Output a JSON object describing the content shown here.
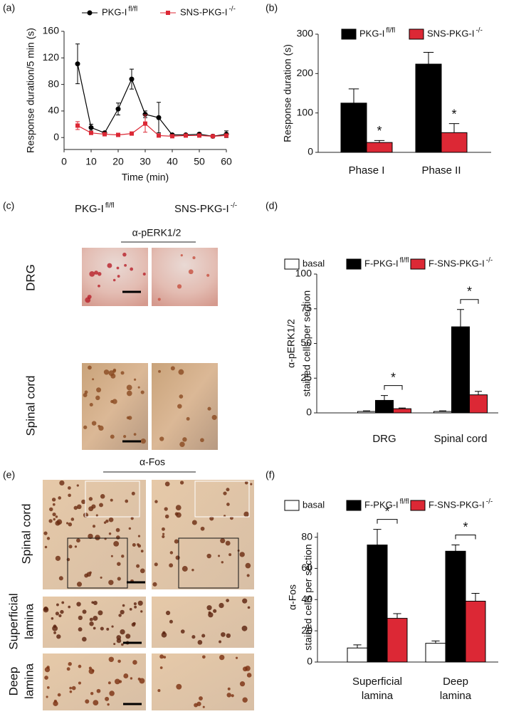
{
  "figure": {
    "panel_c": {
      "label": "(c)",
      "columns": [
        {
          "text": "PKG-I",
          "sup": "fl/fl"
        },
        {
          "text": "SNS-PKG-I",
          "sup": "-/-"
        }
      ],
      "stain": "α-pERK1/2",
      "rows": [
        "DRG",
        "Spinal cord"
      ]
    },
    "panel_e": {
      "label": "(e)",
      "stain": "α-Fos",
      "rows": [
        [
          "Spinal cord"
        ],
        [
          "Superficial",
          "lamina"
        ],
        [
          "Deep",
          "lamina"
        ]
      ]
    }
  },
  "chart_data": [
    {
      "type": "line",
      "panel_label": "(a)",
      "x_label": "Time (min)",
      "y_label": "Response duration/5 min (s)",
      "x": [
        5,
        10,
        15,
        20,
        25,
        30,
        35,
        40,
        45,
        50,
        55,
        60
      ],
      "xlim": [
        0,
        60
      ],
      "xticks": [
        0,
        10,
        20,
        30,
        40,
        50,
        60
      ],
      "ylim": [
        -18,
        160
      ],
      "yticks": [
        0,
        40,
        80,
        120,
        160
      ],
      "series": [
        {
          "name": "PKG-I",
          "name_sup": "fl/fl",
          "color": "#000000",
          "marker": "circle",
          "values": [
            111,
            15,
            7,
            43,
            88,
            35,
            30,
            4,
            4,
            5,
            2,
            5
          ],
          "errors": [
            30,
            5,
            2,
            9,
            15,
            5,
            23,
            2,
            2,
            2,
            1,
            5
          ]
        },
        {
          "name": "SNS-PKG-I",
          "name_sup": "-/-",
          "color": "#dc2835",
          "marker": "square",
          "values": [
            18,
            7,
            5,
            4,
            6,
            21,
            3,
            2,
            3,
            3,
            2,
            3
          ],
          "errors": [
            6,
            2,
            1,
            1,
            2,
            13,
            2,
            1,
            1,
            1,
            1,
            2
          ]
        }
      ]
    },
    {
      "type": "bar",
      "panel_label": "(b)",
      "y_label": [
        "Response duration (s)"
      ],
      "categories": [
        [
          "Phase I"
        ],
        [
          "Phase II"
        ]
      ],
      "ylim": [
        0,
        300
      ],
      "yticks": [
        0,
        100,
        200,
        300
      ],
      "series": [
        {
          "name": "PKG-I",
          "name_sup": "fl/fl",
          "color": "#000000",
          "values": [
            125,
            224
          ],
          "errors": [
            36,
            30
          ]
        },
        {
          "name": "SNS-PKG-I",
          "name_sup": "-/-",
          "color": "#dc2835",
          "values": [
            25,
            50
          ],
          "errors": [
            5,
            23
          ]
        }
      ],
      "annotations": [
        "*",
        "*"
      ]
    },
    {
      "type": "bar",
      "panel_label": "(d)",
      "y_label": [
        "α-pERK1/2",
        "stained cells per section"
      ],
      "categories": [
        [
          "DRG"
        ],
        [
          "Spinal cord"
        ]
      ],
      "ylim": [
        0,
        100
      ],
      "yticks": [
        0,
        25,
        50,
        75,
        100
      ],
      "series": [
        {
          "name": "basal",
          "color": "#ffffff",
          "values": [
            1,
            1
          ],
          "errors": [
            0.5,
            0.5
          ]
        },
        {
          "name": "F-PKG-I",
          "name_sup": "fl/fl",
          "color": "#000000",
          "values": [
            9,
            62
          ],
          "errors": [
            3.5,
            12.5
          ]
        },
        {
          "name": "F-SNS-PKG-I",
          "name_sup": "-/-",
          "color": "#dc2835",
          "values": [
            3,
            13
          ],
          "errors": [
            0.5,
            2.5
          ]
        }
      ],
      "annotations": [
        "*",
        "*"
      ]
    },
    {
      "type": "bar",
      "panel_label": "(f)",
      "y_label": [
        "α-Fos",
        "stained cells per section"
      ],
      "categories": [
        [
          "Superficial",
          "lamina"
        ],
        [
          "Deep",
          "lamina"
        ]
      ],
      "ylim": [
        0,
        83
      ],
      "yticks": [
        0,
        20,
        40,
        60,
        80
      ],
      "series": [
        {
          "name": "basal",
          "color": "#ffffff",
          "values": [
            9,
            12
          ],
          "errors": [
            2,
            1.5
          ]
        },
        {
          "name": "F-PKG-I",
          "name_sup": "fl/fl",
          "color": "#000000",
          "values": [
            75,
            71
          ],
          "errors": [
            10,
            4
          ]
        },
        {
          "name": "F-SNS-PKG-I",
          "name_sup": "-/-",
          "color": "#dc2835",
          "values": [
            28,
            39
          ],
          "errors": [
            3,
            5
          ]
        }
      ],
      "annotations": [
        "*",
        "*"
      ]
    }
  ]
}
